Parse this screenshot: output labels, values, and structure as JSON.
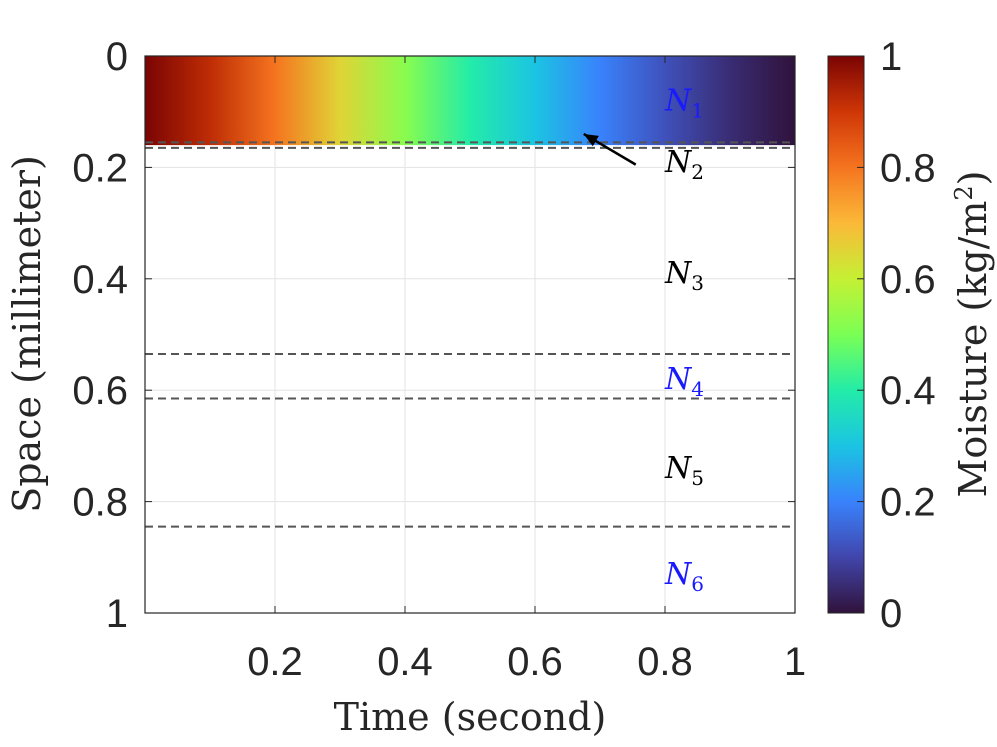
{
  "chart_data": {
    "type": "heatmap",
    "xlabel": "Time (second)",
    "ylabel": "Space (millimeter)",
    "xlim": [
      0,
      1
    ],
    "ylim": [
      0,
      1
    ],
    "y_reversed": true,
    "x_ticks": [
      "0.2",
      "0.4",
      "0.6",
      "0.8",
      "1"
    ],
    "y_ticks": [
      "0",
      "0.2",
      "0.4",
      "0.6",
      "0.8",
      "1"
    ],
    "x_tick_values": [
      0.2,
      0.4,
      0.6,
      0.8,
      1.0
    ],
    "y_tick_values": [
      0,
      0.2,
      0.4,
      0.6,
      0.8,
      1.0
    ],
    "grid": true,
    "colormap": "turbo",
    "heatmap_region": {
      "y_range": [
        0,
        0.16
      ],
      "values_at_x": [
        {
          "x": 0.0,
          "moisture": 1.0
        },
        {
          "x": 0.1,
          "moisture": 0.92
        },
        {
          "x": 0.2,
          "moisture": 0.8
        },
        {
          "x": 0.3,
          "moisture": 0.65
        },
        {
          "x": 0.4,
          "moisture": 0.52
        },
        {
          "x": 0.5,
          "moisture": 0.4
        },
        {
          "x": 0.6,
          "moisture": 0.3
        },
        {
          "x": 0.7,
          "moisture": 0.2
        },
        {
          "x": 0.8,
          "moisture": 0.12
        },
        {
          "x": 0.9,
          "moisture": 0.05
        },
        {
          "x": 1.0,
          "moisture": 0.0
        }
      ]
    },
    "boundaries": [
      0.155,
      0.165,
      0.535,
      0.615,
      0.845
    ],
    "regions": [
      {
        "name": "N",
        "subscript": "1",
        "y": 0.08,
        "color": "#1a1aff"
      },
      {
        "name": "N",
        "subscript": "2",
        "y": 0.19,
        "color": "#000000"
      },
      {
        "name": "N",
        "subscript": "3",
        "y": 0.39,
        "color": "#000000"
      },
      {
        "name": "N",
        "subscript": "4",
        "y": 0.58,
        "color": "#1a1aff"
      },
      {
        "name": "N",
        "subscript": "5",
        "y": 0.74,
        "color": "#000000"
      },
      {
        "name": "N",
        "subscript": "6",
        "y": 0.93,
        "color": "#1a1aff"
      }
    ],
    "arrow": {
      "from": {
        "x": 0.755,
        "y": 0.195
      },
      "to": {
        "x": 0.675,
        "y": 0.14
      }
    },
    "colorbar": {
      "label": "Moisture (kg/m",
      "label_sup": "2",
      "label_close": ")",
      "ticks": [
        "0",
        "0.2",
        "0.4",
        "0.6",
        "0.8",
        "1"
      ],
      "tick_values": [
        0,
        0.2,
        0.4,
        0.6,
        0.8,
        1.0
      ],
      "range": [
        0,
        1
      ]
    }
  }
}
